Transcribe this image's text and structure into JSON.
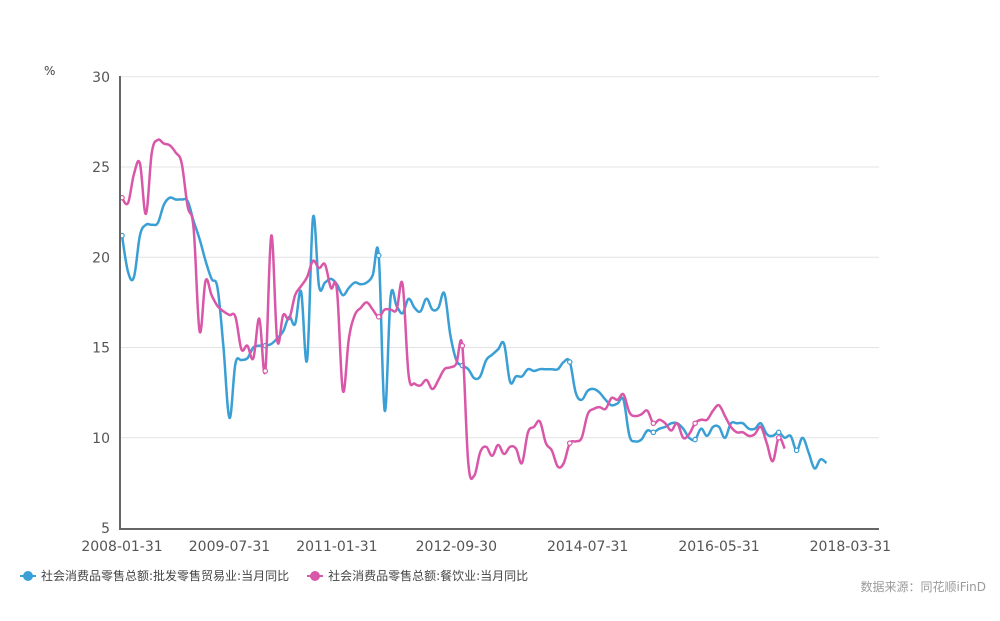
{
  "chart_data": {
    "type": "line",
    "title": "",
    "ylabel": "%",
    "xlabel": "",
    "ylim": [
      5,
      30
    ],
    "yticks": [
      5,
      10,
      15,
      20,
      25,
      30
    ],
    "xtick_labels": [
      "2008-01-31",
      "2009-07-31",
      "2011-01-31",
      "2012-09-30",
      "2014-07-31",
      "2016-05-31",
      "2018-03-31"
    ],
    "x_unit": "months since 2008-01",
    "grid": true,
    "legend_position": "bottom-left",
    "series": [
      {
        "name": "社会消费品零售总额:批发零售贸易业:当月同比",
        "color": "#3a9fd4",
        "points": [
          [
            0,
            21.2
          ],
          [
            1,
            19.2
          ],
          [
            2,
            18.9
          ],
          [
            3,
            21.2
          ],
          [
            4,
            21.8
          ],
          [
            5,
            21.8
          ],
          [
            6,
            21.9
          ],
          [
            7,
            22.9
          ],
          [
            8,
            23.3
          ],
          [
            9,
            23.2
          ],
          [
            10,
            23.2
          ],
          [
            11,
            23.1
          ],
          [
            12,
            22.0
          ],
          [
            13,
            21.0
          ],
          [
            14,
            19.8
          ],
          [
            15,
            18.8
          ],
          [
            16,
            18.3
          ],
          [
            17,
            15.0
          ],
          [
            18,
            11.1
          ],
          [
            19,
            14.1
          ],
          [
            20,
            14.3
          ],
          [
            21,
            14.4
          ],
          [
            22,
            15.0
          ],
          [
            23,
            15.1
          ],
          [
            24,
            15.1
          ],
          [
            25,
            15.2
          ],
          [
            26,
            15.5
          ],
          [
            27,
            15.9
          ],
          [
            28,
            16.7
          ],
          [
            29,
            16.3
          ],
          [
            30,
            18.1
          ],
          [
            31,
            14.3
          ],
          [
            32,
            22.2
          ],
          [
            33,
            18.4
          ],
          [
            34,
            18.6
          ],
          [
            35,
            18.8
          ],
          [
            36,
            18.5
          ],
          [
            37,
            17.9
          ],
          [
            38,
            18.3
          ],
          [
            39,
            18.6
          ],
          [
            40,
            18.5
          ],
          [
            41,
            18.6
          ],
          [
            42,
            19.0
          ],
          [
            43,
            20.1
          ],
          [
            44,
            11.5
          ],
          [
            45,
            17.8
          ],
          [
            46,
            17.3
          ],
          [
            47,
            16.9
          ],
          [
            48,
            17.7
          ],
          [
            49,
            17.2
          ],
          [
            50,
            17.0
          ],
          [
            51,
            17.7
          ],
          [
            52,
            17.1
          ],
          [
            53,
            17.2
          ],
          [
            54,
            18.0
          ],
          [
            55,
            15.7
          ],
          [
            56,
            14.3
          ],
          [
            57,
            14.0
          ],
          [
            58,
            13.8
          ],
          [
            59,
            13.3
          ],
          [
            60,
            13.4
          ],
          [
            61,
            14.3
          ],
          [
            62,
            14.6
          ],
          [
            63,
            14.9
          ],
          [
            64,
            15.2
          ],
          [
            65,
            13.1
          ],
          [
            66,
            13.4
          ],
          [
            67,
            13.4
          ],
          [
            68,
            13.8
          ],
          [
            69,
            13.7
          ],
          [
            70,
            13.8
          ],
          [
            71,
            13.8
          ],
          [
            72,
            13.8
          ],
          [
            73,
            13.8
          ],
          [
            74,
            14.2
          ],
          [
            75,
            14.2
          ],
          [
            76,
            12.5
          ],
          [
            77,
            12.1
          ],
          [
            78,
            12.6
          ],
          [
            79,
            12.7
          ],
          [
            80,
            12.5
          ],
          [
            81,
            12.1
          ],
          [
            82,
            11.8
          ],
          [
            83,
            11.9
          ],
          [
            84,
            12.1
          ],
          [
            85,
            10.1
          ],
          [
            86,
            9.8
          ],
          [
            87,
            9.9
          ],
          [
            88,
            10.4
          ],
          [
            89,
            10.3
          ],
          [
            90,
            10.5
          ],
          [
            91,
            10.6
          ],
          [
            92,
            10.8
          ],
          [
            93,
            10.8
          ],
          [
            94,
            10.5
          ],
          [
            95,
            10.0
          ],
          [
            96,
            9.9
          ],
          [
            97,
            10.5
          ],
          [
            98,
            10.1
          ],
          [
            99,
            10.6
          ],
          [
            100,
            10.6
          ],
          [
            101,
            10.0
          ],
          [
            102,
            10.8
          ],
          [
            103,
            10.8
          ],
          [
            104,
            10.8
          ],
          [
            105,
            10.5
          ],
          [
            106,
            10.5
          ],
          [
            107,
            10.8
          ],
          [
            108,
            10.2
          ],
          [
            109,
            10.1
          ],
          [
            110,
            10.3
          ],
          [
            111,
            10.0
          ],
          [
            112,
            10.1
          ],
          [
            113,
            9.3
          ],
          [
            114,
            10.0
          ],
          [
            115,
            9.2
          ],
          [
            116,
            8.3
          ],
          [
            117,
            8.8
          ],
          [
            118,
            8.6
          ]
        ]
      },
      {
        "name": "社会消费品零售总额:餐饮业:当月同比",
        "color": "#d957a8",
        "points": [
          [
            0,
            23.3
          ],
          [
            1,
            23.0
          ],
          [
            2,
            24.6
          ],
          [
            3,
            25.2
          ],
          [
            4,
            22.4
          ],
          [
            5,
            25.8
          ],
          [
            6,
            26.5
          ],
          [
            7,
            26.3
          ],
          [
            8,
            26.2
          ],
          [
            9,
            25.8
          ],
          [
            10,
            25.2
          ],
          [
            11,
            22.8
          ],
          [
            12,
            21.6
          ],
          [
            13,
            15.9
          ],
          [
            14,
            18.7
          ],
          [
            15,
            17.9
          ],
          [
            16,
            17.3
          ],
          [
            17,
            17.0
          ],
          [
            18,
            16.8
          ],
          [
            19,
            16.7
          ],
          [
            20,
            14.9
          ],
          [
            21,
            15.1
          ],
          [
            22,
            14.4
          ],
          [
            23,
            16.6
          ],
          [
            24,
            13.7
          ],
          [
            25,
            21.2
          ],
          [
            26,
            15.4
          ],
          [
            27,
            16.8
          ],
          [
            28,
            16.6
          ],
          [
            29,
            17.9
          ],
          [
            30,
            18.4
          ],
          [
            31,
            18.9
          ],
          [
            32,
            19.8
          ],
          [
            33,
            19.4
          ],
          [
            34,
            19.6
          ],
          [
            35,
            18.3
          ],
          [
            36,
            18.2
          ],
          [
            37,
            12.6
          ],
          [
            38,
            15.5
          ],
          [
            39,
            16.8
          ],
          [
            40,
            17.2
          ],
          [
            41,
            17.5
          ],
          [
            42,
            17.1
          ],
          [
            43,
            16.7
          ],
          [
            44,
            17.1
          ],
          [
            45,
            17.1
          ],
          [
            46,
            17.1
          ],
          [
            47,
            18.5
          ],
          [
            48,
            13.5
          ],
          [
            49,
            13.0
          ],
          [
            50,
            12.9
          ],
          [
            51,
            13.2
          ],
          [
            52,
            12.7
          ],
          [
            53,
            13.2
          ],
          [
            54,
            13.8
          ],
          [
            55,
            13.9
          ],
          [
            56,
            14.1
          ],
          [
            57,
            15.1
          ],
          [
            58,
            8.6
          ],
          [
            59,
            7.9
          ],
          [
            60,
            9.2
          ],
          [
            61,
            9.5
          ],
          [
            62,
            9.0
          ],
          [
            63,
            9.6
          ],
          [
            64,
            9.1
          ],
          [
            65,
            9.5
          ],
          [
            66,
            9.4
          ],
          [
            67,
            8.6
          ],
          [
            68,
            10.3
          ],
          [
            69,
            10.6
          ],
          [
            70,
            10.9
          ],
          [
            71,
            9.7
          ],
          [
            72,
            9.3
          ],
          [
            73,
            8.4
          ],
          [
            74,
            8.6
          ],
          [
            75,
            9.7
          ],
          [
            76,
            9.8
          ],
          [
            77,
            10.0
          ],
          [
            78,
            11.3
          ],
          [
            79,
            11.6
          ],
          [
            80,
            11.7
          ],
          [
            81,
            11.6
          ],
          [
            82,
            12.2
          ],
          [
            83,
            12.1
          ],
          [
            84,
            12.4
          ],
          [
            85,
            11.4
          ],
          [
            86,
            11.2
          ],
          [
            87,
            11.3
          ],
          [
            88,
            11.5
          ],
          [
            89,
            10.8
          ],
          [
            90,
            11.0
          ],
          [
            91,
            10.8
          ],
          [
            92,
            10.4
          ],
          [
            93,
            10.8
          ],
          [
            94,
            10.0
          ],
          [
            95,
            10.2
          ],
          [
            96,
            10.8
          ],
          [
            97,
            11.0
          ],
          [
            98,
            11.0
          ],
          [
            99,
            11.5
          ],
          [
            100,
            11.8
          ],
          [
            101,
            11.2
          ],
          [
            102,
            10.6
          ],
          [
            103,
            10.3
          ],
          [
            104,
            10.3
          ],
          [
            105,
            10.1
          ],
          [
            106,
            10.2
          ],
          [
            107,
            10.6
          ],
          [
            108,
            9.7
          ],
          [
            109,
            8.7
          ],
          [
            110,
            10.0
          ],
          [
            111,
            9.4
          ]
        ]
      }
    ]
  },
  "axis": {
    "unit_label": "%"
  },
  "legend": {
    "items": [
      {
        "label": "社会消费品零售总额:批发零售贸易业:当月同比",
        "color": "#3a9fd4"
      },
      {
        "label": "社会消费品零售总额:餐饮业:当月同比",
        "color": "#d957a8"
      }
    ]
  },
  "source": "数据来源：同花顺iFinD"
}
